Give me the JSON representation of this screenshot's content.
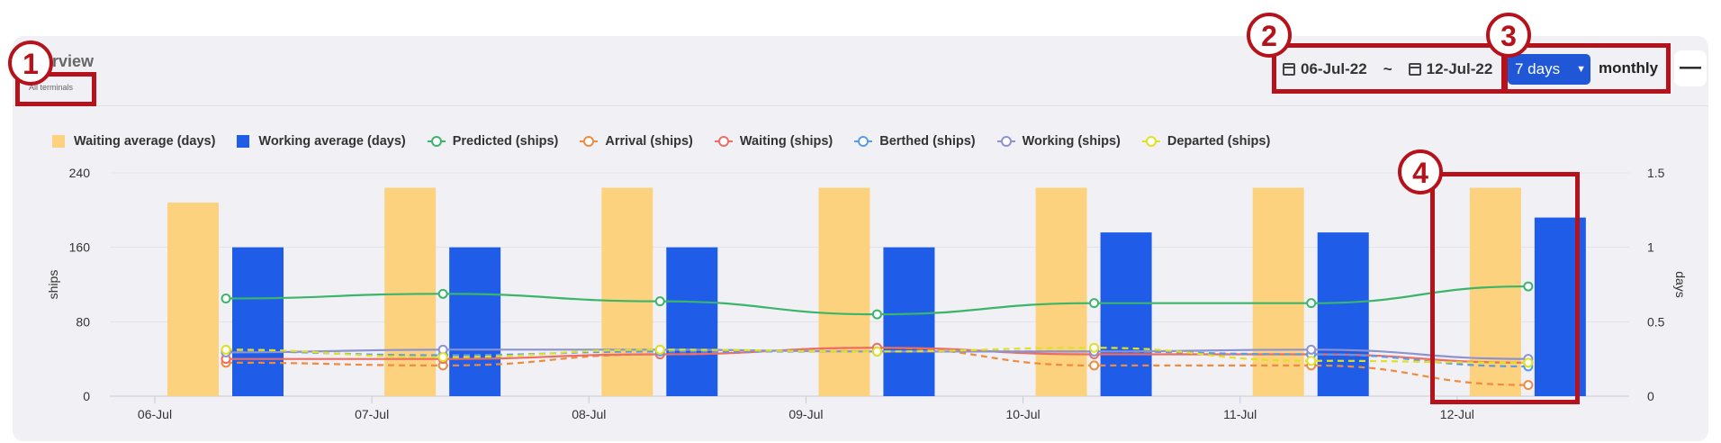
{
  "header": {
    "title": "erview",
    "subtitle": "All terminals"
  },
  "filters": {
    "start_date": "06-Jul-22",
    "separator": "~",
    "end_date": "12-Jul-22",
    "range_label": "7 days",
    "mode_label": "monthly",
    "collapse_symbol": "—"
  },
  "annotations": [
    "1",
    "2",
    "3",
    "4"
  ],
  "colors": {
    "waiting_avg": "#fdd27e",
    "working_avg": "#1f5de8",
    "predicted": "#3bb56a",
    "arrival": "#f08a3c",
    "waiting": "#ee6d62",
    "berthed": "#5b9ae8",
    "working": "#8c93cf",
    "departed": "#dfe121",
    "annotation": "#b5121b"
  },
  "chart_data": {
    "type": "bar",
    "categories": [
      "06-Jul",
      "07-Jul",
      "08-Jul",
      "09-Jul",
      "10-Jul",
      "11-Jul",
      "12-Jul"
    ],
    "left_axis": {
      "label": "ships",
      "ticks": [
        0,
        80,
        160,
        240
      ],
      "range": [
        0,
        240
      ]
    },
    "right_axis": {
      "label": "days",
      "ticks": [
        "0",
        "0.5",
        "1",
        "1.5"
      ],
      "range": [
        0,
        1.5
      ]
    },
    "grid": true,
    "legend_position": "top-left",
    "bar_series": [
      {
        "name": "Waiting average (days)",
        "color": "#fdd27e",
        "values": [
          1.3,
          1.4,
          1.4,
          1.4,
          1.4,
          1.4,
          1.4
        ]
      },
      {
        "name": "Working average (days)",
        "color": "#1f5de8",
        "values": [
          1.0,
          1.0,
          1.0,
          1.0,
          1.1,
          1.1,
          1.2
        ]
      }
    ],
    "line_series": [
      {
        "name": "Predicted (ships)",
        "color": "#3bb56a",
        "dashed": false,
        "values": [
          105,
          110,
          102,
          88,
          100,
          100,
          118
        ]
      },
      {
        "name": "Arrival (ships)",
        "color": "#f08a3c",
        "dashed": true,
        "values": [
          36,
          33,
          45,
          52,
          33,
          33,
          12
        ]
      },
      {
        "name": "Waiting (ships)",
        "color": "#ee6d62",
        "dashed": false,
        "values": [
          40,
          40,
          45,
          52,
          45,
          45,
          36
        ]
      },
      {
        "name": "Berthed (ships)",
        "color": "#5b9ae8",
        "dashed": true,
        "values": [
          48,
          44,
          48,
          48,
          48,
          45,
          32
        ]
      },
      {
        "name": "Working (ships)",
        "color": "#8c93cf",
        "dashed": false,
        "values": [
          47,
          50,
          50,
          48,
          48,
          50,
          40
        ]
      },
      {
        "name": "Departed (ships)",
        "color": "#dfe121",
        "dashed": true,
        "values": [
          50,
          42,
          50,
          48,
          52,
          38,
          36
        ]
      }
    ]
  }
}
